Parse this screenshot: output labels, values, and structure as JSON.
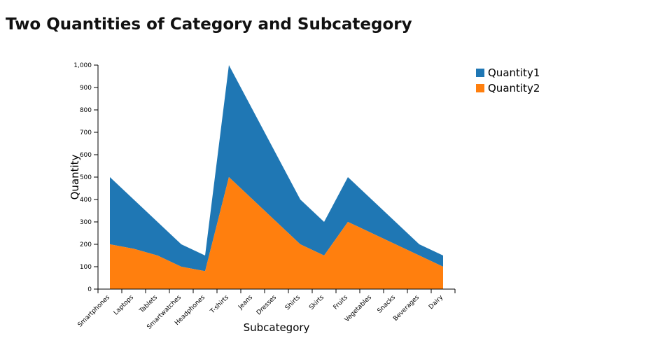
{
  "chart_data": {
    "type": "area",
    "stacked": true,
    "title": "Two Quantities of Category and Subcategory",
    "xlabel": "Subcategory",
    "ylabel": "Quantity",
    "ylim": [
      0,
      1000
    ],
    "yticks": [
      0,
      100,
      200,
      300,
      400,
      500,
      600,
      700,
      800,
      900,
      1000
    ],
    "ytick_labels": [
      "0",
      "100",
      "200",
      "300",
      "400",
      "500",
      "600",
      "700",
      "800",
      "900",
      "1,000"
    ],
    "categories": [
      "Smartphones",
      "Laptops",
      "Tablets",
      "Smartwatches",
      "Headphones",
      "T-shirts",
      "Jeans",
      "Dresses",
      "Shirts",
      "Skirts",
      "Fruits",
      "Vegetables",
      "Snacks",
      "Beverages",
      "Dairy"
    ],
    "series": [
      {
        "name": "Quantity1",
        "color": "#1f77b4",
        "values": [
          300,
          220,
          150,
          100,
          70,
          500,
          400,
          300,
          200,
          150,
          200,
          150,
          100,
          50,
          50
        ]
      },
      {
        "name": "Quantity2",
        "color": "#ff7f0e",
        "values": [
          200,
          180,
          150,
          100,
          80,
          500,
          400,
          300,
          200,
          150,
          300,
          250,
          200,
          150,
          100
        ]
      }
    ],
    "grid": false,
    "legend_position": "top-right"
  }
}
